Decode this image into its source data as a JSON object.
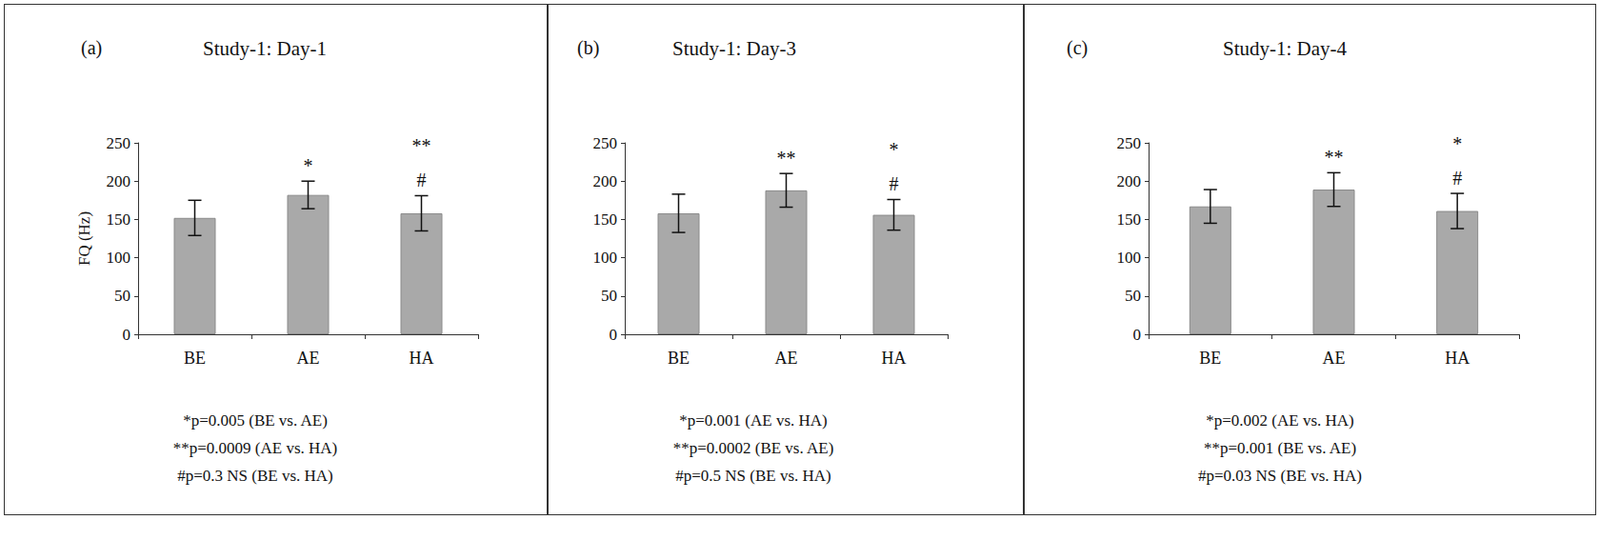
{
  "chart_data": [
    {
      "type": "bar",
      "panel_label": "(a)",
      "title": "Study-1: Day-1",
      "y_label": "FQ (Hz)",
      "categories": [
        "BE",
        "AE",
        "HA"
      ],
      "values": [
        152,
        182,
        158
      ],
      "errors": [
        23,
        18,
        23
      ],
      "color": "#a9a9a9",
      "ylim": [
        0,
        250
      ],
      "yticks": [
        0,
        50,
        100,
        150,
        200,
        250
      ],
      "grid": false,
      "annotations": [
        {
          "category": "AE",
          "text": "*"
        },
        {
          "category": "HA",
          "text": "**"
        },
        {
          "category": "HA",
          "text": "#"
        }
      ],
      "footnotes": [
        "*p=0.005 (BE vs. AE)",
        "**p=0.0009 (AE vs. HA)",
        "#p=0.3 NS (BE vs. HA)"
      ]
    },
    {
      "type": "bar",
      "panel_label": "(b)",
      "title": "Study-1: Day-3",
      "categories": [
        "BE",
        "AE",
        "HA"
      ],
      "values": [
        158,
        188,
        156
      ],
      "errors": [
        25,
        22,
        20
      ],
      "color": "#a9a9a9",
      "ylim": [
        0,
        250
      ],
      "yticks": [
        0,
        50,
        100,
        150,
        200,
        250
      ],
      "grid": false,
      "annotations": [
        {
          "category": "AE",
          "text": "**"
        },
        {
          "category": "HA",
          "text": "*"
        },
        {
          "category": "HA",
          "text": "#"
        }
      ],
      "footnotes": [
        "*p=0.001 (AE vs. HA)",
        "**p=0.0002 (BE vs. AE)",
        "#p=0.5 NS (BE vs. HA)"
      ]
    },
    {
      "type": "bar",
      "panel_label": "(c)",
      "title": "Study-1: Day-4",
      "categories": [
        "BE",
        "AE",
        "HA"
      ],
      "values": [
        167,
        189,
        161
      ],
      "errors": [
        22,
        22,
        23
      ],
      "color": "#a9a9a9",
      "ylim": [
        0,
        250
      ],
      "yticks": [
        0,
        50,
        100,
        150,
        200,
        250
      ],
      "grid": false,
      "annotations": [
        {
          "category": "AE",
          "text": "**"
        },
        {
          "category": "HA",
          "text": "*"
        },
        {
          "category": "HA",
          "text": "#"
        }
      ],
      "footnotes": [
        "*p=0.002 (AE vs. HA)",
        "**p=0.001 (BE vs. AE)",
        "#p=0.03 NS (BE vs. HA)"
      ]
    }
  ]
}
